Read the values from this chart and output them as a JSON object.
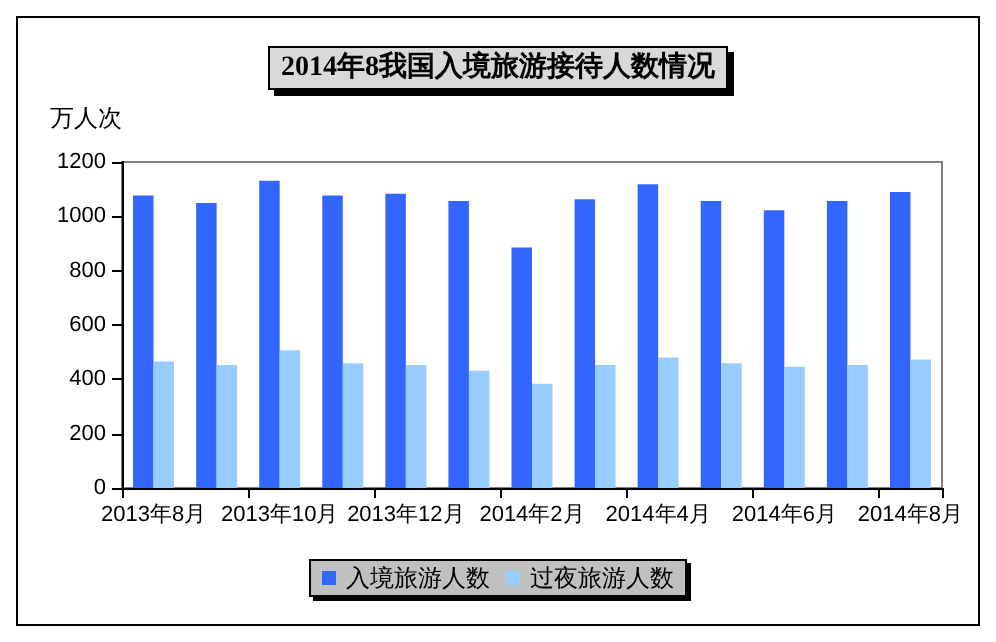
{
  "chart_data": {
    "type": "bar",
    "title": "2014年8我国入境旅游接待人数情况",
    "ylabel": "万人次",
    "categories": [
      "2013年8月",
      null,
      "2013年10月",
      null,
      "2013年12月",
      null,
      "2014年2月",
      null,
      "2014年4月",
      null,
      "2014年6月",
      null,
      "2014年8月"
    ],
    "series": [
      {
        "name": "入境旅游人数",
        "color": "#3366ff",
        "values": [
          1077,
          1049,
          1131,
          1077,
          1083,
          1056,
          885,
          1063,
          1118,
          1056,
          1022,
          1056,
          1090
        ]
      },
      {
        "name": "过夜旅游人数",
        "color": "#99ccff",
        "values": [
          466,
          453,
          507,
          459,
          453,
          432,
          384,
          453,
          480,
          459,
          446,
          453,
          473
        ]
      }
    ],
    "ylim": [
      0,
      1200
    ],
    "yticks": [
      0,
      200,
      400,
      600,
      800,
      1000,
      1200
    ],
    "grid": false,
    "legend": "bottom"
  }
}
